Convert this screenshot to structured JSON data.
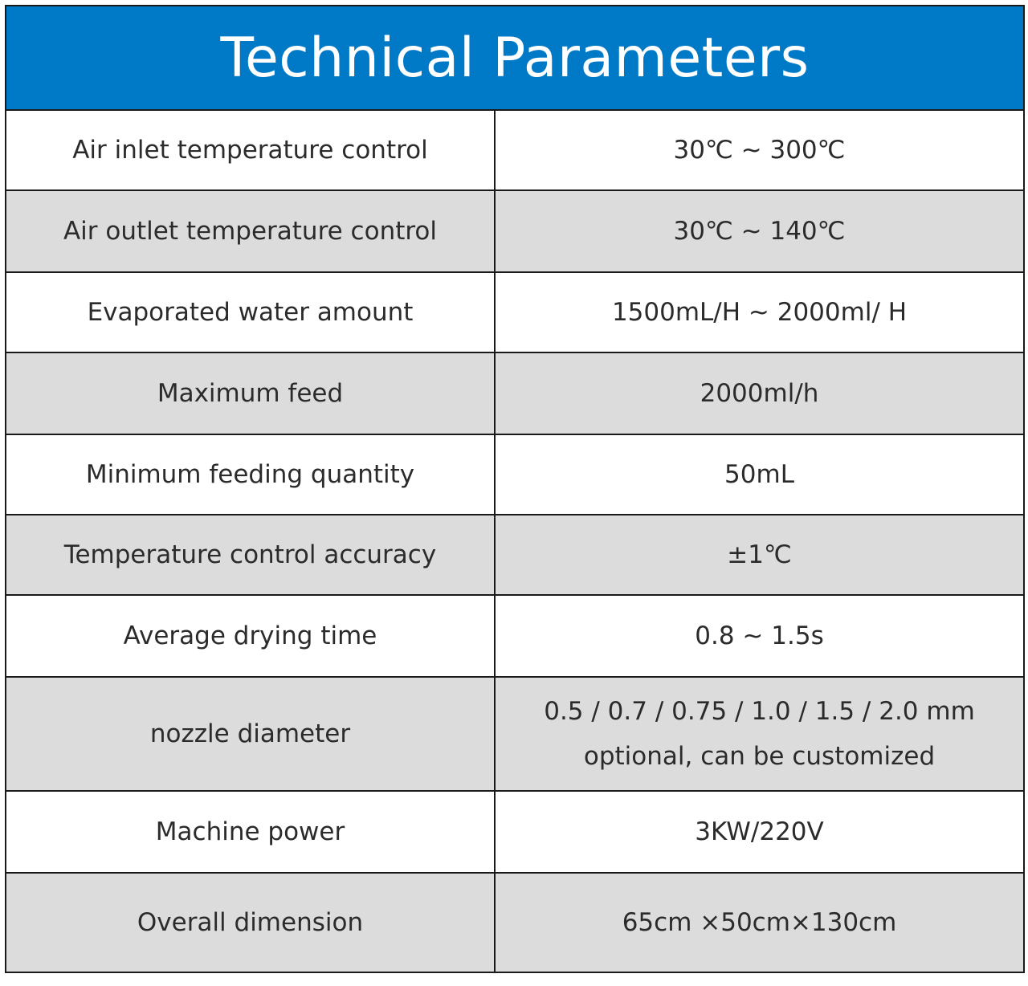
{
  "title": "Technical Parameters",
  "rows": [
    {
      "label": "Air inlet temperature control",
      "value": [
        "30℃ ~ 300℃"
      ]
    },
    {
      "label": "Air outlet temperature control",
      "value": [
        "30℃ ~ 140℃"
      ]
    },
    {
      "label": "Evaporated water amount",
      "value": [
        "1500mL/H ~ 2000ml/ H"
      ]
    },
    {
      "label": "Maximum feed",
      "value": [
        "2000ml/h"
      ]
    },
    {
      "label": "Minimum feeding quantity",
      "value": [
        "50mL"
      ]
    },
    {
      "label": "Temperature control accuracy",
      "value": [
        "±1℃"
      ]
    },
    {
      "label": "Average drying time",
      "value": [
        "0.8 ~ 1.5s"
      ]
    },
    {
      "label": "nozzle diameter",
      "value": [
        "0.5 / 0.7 / 0.75 / 1.0 / 1.5 / 2.0 mm",
        "optional, can be customized"
      ]
    },
    {
      "label": "Machine power",
      "value": [
        "3KW/220V"
      ]
    },
    {
      "label": "Overall dimension",
      "value": [
        "65cm ×50cm×130cm"
      ]
    }
  ],
  "colors": {
    "header_background": "#0079c7",
    "header_text": "#ffffff",
    "alt_row_background": "#dcdcdc",
    "border": "#1a1a1a"
  }
}
